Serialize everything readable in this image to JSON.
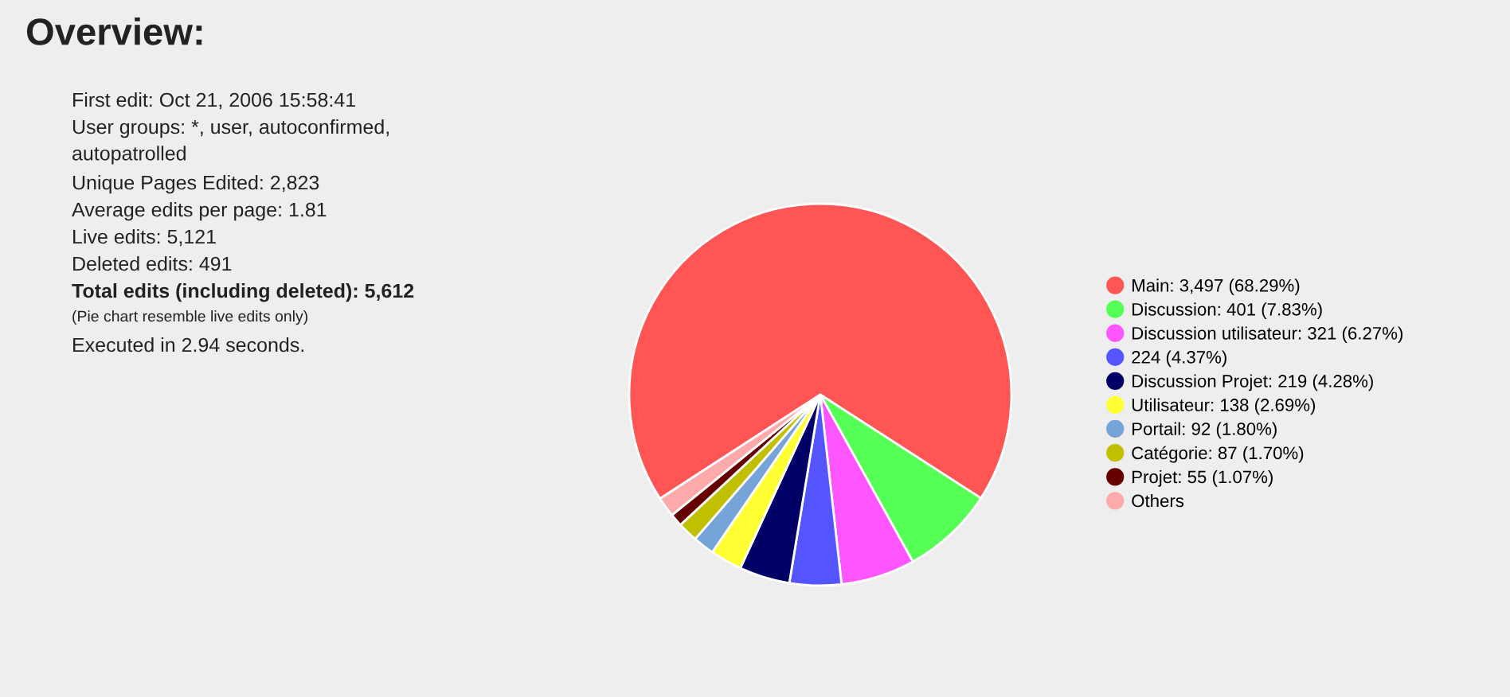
{
  "chart_data": {
    "type": "pie",
    "title": "Overview:",
    "categories": [
      "Main: 3,497 (68.29%)",
      "Discussion: 401 (7.83%)",
      "Discussion utilisateur: 321 (6.27%)",
      "224 (4.37%)",
      "Discussion Projet: 219 (4.28%)",
      "Utilisateur: 138 (2.69%)",
      "Portail: 92 (1.80%)",
      "Catégorie: 87 (1.70%)",
      "Projet: 55 (1.07%)",
      "Others"
    ],
    "values": [
      3497,
      401,
      321,
      224,
      219,
      138,
      92,
      87,
      55,
      87
    ],
    "colors": [
      "#ff5555",
      "#55ff55",
      "#ff55ff",
      "#5555ff",
      "#000066",
      "#ffff33",
      "#77a4d8",
      "#c0c000",
      "#660000",
      "#ffaaaa"
    ],
    "legend": "right",
    "annotations": [
      "First edit: Oct 21, 2006 15:58:41",
      "User groups: *, user, autoconfirmed,\nautopatrolled",
      "Unique Pages Edited: 2,823",
      "Average edits per page: 1.81",
      "Live edits: 5,121",
      "Deleted edits: 491",
      "Total edits (including deleted): 5,612",
      "(Pie chart resemble live edits only)",
      "Executed in 2.94 seconds."
    ]
  }
}
